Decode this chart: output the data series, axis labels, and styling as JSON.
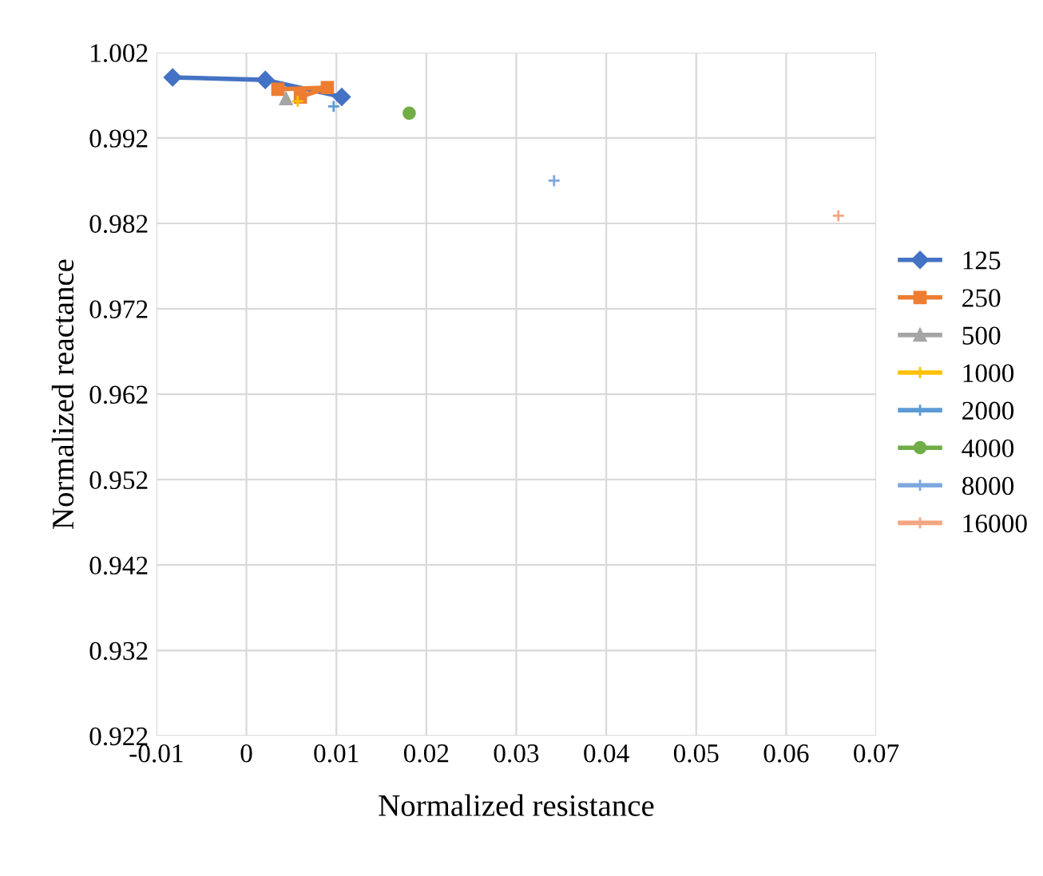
{
  "chart_data": {
    "type": "line",
    "xlabel": "Normalized resistance",
    "ylabel": "Normalized reactance",
    "xlim": [
      -0.01,
      0.07
    ],
    "xticks": [
      -0.01,
      0,
      0.01,
      0.02,
      0.03,
      0.04,
      0.05,
      0.06,
      0.07
    ],
    "ylim": [
      0.922,
      1.002
    ],
    "yticks": [
      0.922,
      0.932,
      0.942,
      0.952,
      0.962,
      0.972,
      0.982,
      0.992,
      1.002
    ],
    "grid": true,
    "legend": "right",
    "series": [
      {
        "name": "125",
        "color": "#4472c4",
        "marker": "diamond",
        "x": [
          -0.0082,
          0.0021,
          0.0106
        ],
        "values": [
          0.9991,
          0.9988,
          0.9968
        ]
      },
      {
        "name": "250",
        "color": "#ed7d31",
        "marker": "square",
        "x": [
          0.0035,
          0.009,
          0.006
        ],
        "values": [
          0.9977,
          0.9979,
          0.9968
        ]
      },
      {
        "name": "500",
        "color": "#a5a5a5",
        "marker": "triangle",
        "x": [
          0.0044
        ],
        "values": [
          0.9966
        ]
      },
      {
        "name": "1000",
        "color": "#ffc000",
        "marker": "cross",
        "x": [
          0.0057
        ],
        "values": [
          0.9963
        ]
      },
      {
        "name": "2000",
        "color": "#5b9bd5",
        "marker": "cross",
        "x": [
          0.0097
        ],
        "values": [
          0.9957
        ]
      },
      {
        "name": "4000",
        "color": "#70ad47",
        "marker": "circle",
        "x": [
          0.0181
        ],
        "values": [
          0.9949
        ]
      },
      {
        "name": "8000",
        "color": "#7fa7e0",
        "marker": "cross",
        "x": [
          0.0342
        ],
        "values": [
          0.987
        ]
      },
      {
        "name": "16000",
        "color": "#f4a582",
        "marker": "cross",
        "x": [
          0.0658
        ],
        "values": [
          0.9829
        ]
      }
    ]
  }
}
